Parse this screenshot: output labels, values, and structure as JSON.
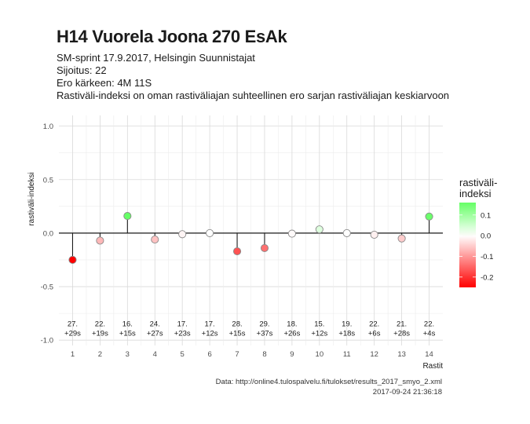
{
  "title": "H14 Vuorela Joona 270 EsAk",
  "subtitle_lines": [
    "SM-sprint 17.9.2017, Helsingin Suunnistajat",
    "Sijoitus: 22",
    "Ero kärkeen: 4M 11S",
    "Rastiväli-indeksi on oman rastiväliajan suhteellinen ero sarjan rastiväliajan keskiarvoon"
  ],
  "caption_lines": [
    "Data: http://online4.tulospalvelu.fi/tulokset/results_2017_smyo_2.xml",
    "2017-09-24 21:36:18"
  ],
  "chart_data": {
    "type": "scatter",
    "title": "H14 Vuorela Joona 270 EsAk",
    "xlabel": "Rastit",
    "ylabel": "rastiväli-indeksi",
    "x": [
      1,
      2,
      3,
      4,
      5,
      6,
      7,
      8,
      9,
      10,
      11,
      12,
      13,
      14
    ],
    "values": [
      -0.25,
      -0.07,
      0.16,
      -0.06,
      -0.01,
      0.0,
      -0.17,
      -0.14,
      -0.005,
      0.035,
      0.0,
      -0.015,
      -0.05,
      0.155
    ],
    "ylim": [
      -1.05,
      1.1
    ],
    "yticks": [
      "1.0",
      "0.5",
      "0.0",
      "-0.5",
      "-1.0"
    ],
    "ytick_values": [
      1.0,
      0.5,
      0.0,
      -0.5,
      -1.0
    ],
    "xticks": [
      "1",
      "2",
      "3",
      "4",
      "5",
      "6",
      "7",
      "8",
      "9",
      "10",
      "11",
      "12",
      "13",
      "14"
    ],
    "annotations": [
      [
        "27.",
        "+29s"
      ],
      [
        "22.",
        "+19s"
      ],
      [
        "16.",
        "+15s"
      ],
      [
        "24.",
        "+27s"
      ],
      [
        "17.",
        "+23s"
      ],
      [
        "17.",
        "+12s"
      ],
      [
        "28.",
        "+15s"
      ],
      [
        "29.",
        "+37s"
      ],
      [
        "18.",
        "+26s"
      ],
      [
        "15.",
        "+12s"
      ],
      [
        "19.",
        "+18s"
      ],
      [
        "22.",
        "+6s"
      ],
      [
        "21.",
        "+28s"
      ],
      [
        "22.",
        "+4s"
      ]
    ],
    "annotation_y": -0.9,
    "grid": true,
    "legend": {
      "title_lines": [
        "rastiväli-",
        "indeksi"
      ],
      "labels": [
        "0.1",
        "0.0",
        "-0.1",
        "-0.2"
      ],
      "label_values": [
        0.1,
        0.0,
        -0.1,
        -0.2
      ],
      "range": [
        -0.25,
        0.16
      ],
      "placement": "right"
    },
    "colors": {
      "low": "#ff0000",
      "mid": "#ffffff",
      "high": "#66ff66"
    }
  }
}
